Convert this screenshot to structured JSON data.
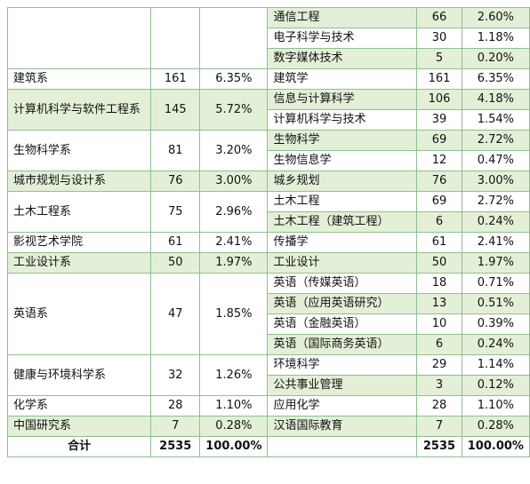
{
  "rows": [
    {
      "dept": "",
      "dcount": "",
      "dpct": "",
      "major": "通信工程",
      "mcount": "66",
      "mpct": "2.60%"
    },
    {
      "major": "电子科学与技术",
      "mcount": "30",
      "mpct": "1.18%"
    },
    {
      "major": "数字媒体技术",
      "mcount": "5",
      "mpct": "0.20%"
    },
    {
      "dept": "建筑系",
      "dcount": "161",
      "dpct": "6.35%",
      "major": "建筑学",
      "mcount": "161",
      "mpct": "6.35%"
    },
    {
      "dept": "计算机科学与软件工程系",
      "dcount": "145",
      "dpct": "5.72%",
      "major": "信息与计算科学",
      "mcount": "106",
      "mpct": "4.18%"
    },
    {
      "major": "计算机科学与技术",
      "mcount": "39",
      "mpct": "1.54%"
    },
    {
      "dept": "生物科学系",
      "dcount": "81",
      "dpct": "3.20%",
      "major": "生物科学",
      "mcount": "69",
      "mpct": "2.72%"
    },
    {
      "major": "生物信息学",
      "mcount": "12",
      "mpct": "0.47%"
    },
    {
      "dept": "城市规划与设计系",
      "dcount": "76",
      "dpct": "3.00%",
      "major": "城乡规划",
      "mcount": "76",
      "mpct": "3.00%"
    },
    {
      "dept": "土木工程系",
      "dcount": "75",
      "dpct": "2.96%",
      "major": "土木工程",
      "mcount": "69",
      "mpct": "2.72%"
    },
    {
      "major": "土木工程（建筑工程）",
      "mcount": "6",
      "mpct": "0.24%"
    },
    {
      "dept": "影视艺术学院",
      "dcount": "61",
      "dpct": "2.41%",
      "major": "传播学",
      "mcount": "61",
      "mpct": "2.41%"
    },
    {
      "dept": "工业设计系",
      "dcount": "50",
      "dpct": "1.97%",
      "major": "工业设计",
      "mcount": "50",
      "mpct": "1.97%"
    },
    {
      "dept": "英语系",
      "dcount": "47",
      "dpct": "1.85%",
      "major": "英语（传媒英语）",
      "mcount": "18",
      "mpct": "0.71%"
    },
    {
      "major": "英语（应用英语研究）",
      "mcount": "13",
      "mpct": "0.51%"
    },
    {
      "major": "英语（金融英语）",
      "mcount": "10",
      "mpct": "0.39%"
    },
    {
      "major": "英语（国际商务英语）",
      "mcount": "6",
      "mpct": "0.24%"
    },
    {
      "dept": "健康与环境科学系",
      "dcount": "32",
      "dpct": "1.26%",
      "major": "环境科学",
      "mcount": "29",
      "mpct": "1.14%"
    },
    {
      "major": "公共事业管理",
      "mcount": "3",
      "mpct": "0.12%"
    },
    {
      "dept": "化学系",
      "dcount": "28",
      "dpct": "1.10%",
      "major": "应用化学",
      "mcount": "28",
      "mpct": "1.10%"
    },
    {
      "dept": "中国研究系",
      "dcount": "7",
      "dpct": "0.28%",
      "major": "汉语国际教育",
      "mcount": "7",
      "mpct": "0.28%"
    }
  ],
  "total": {
    "label": "合计",
    "dcount": "2535",
    "dpct": "100.00%",
    "mcount": "2535",
    "mpct": "100.00%"
  }
}
